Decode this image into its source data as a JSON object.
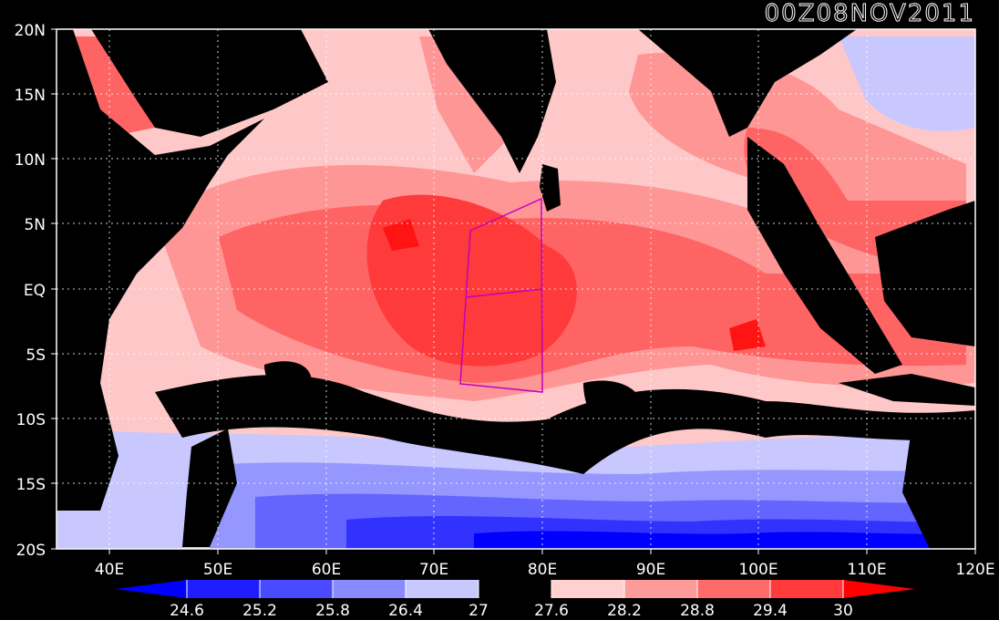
{
  "title": "00Z08NOV2011",
  "axes": {
    "lat_labels": [
      "20N",
      "15N",
      "10N",
      "5N",
      "EQ",
      "5S",
      "10S",
      "15S",
      "20S"
    ],
    "lon_labels": [
      "40E",
      "50E",
      "60E",
      "70E",
      "80E",
      "90E",
      "100E",
      "110E",
      "120E"
    ]
  },
  "colorbar": {
    "labels": [
      "24.6",
      "25.2",
      "25.8",
      "26.4",
      "27",
      "27.6",
      "28.2",
      "28.8",
      "29.4",
      "30"
    ],
    "colors": [
      "#0000ff",
      "#1e1eff",
      "#4a4aff",
      "#8a8aff",
      "#c8c8ff",
      "#000000",
      "#ffd0d0",
      "#ff9a9a",
      "#ff6a6a",
      "#ff3a3a",
      "#ff0000"
    ]
  },
  "colors": {
    "land": "#000000",
    "warm_1": "#ffc8c8",
    "warm_2": "#ff9696",
    "warm_3": "#ff6464",
    "warm_4": "#ff3a3a",
    "warm_5": "#ff1414",
    "cool_1": "#c8c8ff",
    "cool_2": "#9696ff",
    "cool_3": "#6464ff",
    "cool_4": "#3232ff",
    "cool_5": "#0000ff",
    "box": "#c000c0",
    "grid": "#ffffff"
  }
}
